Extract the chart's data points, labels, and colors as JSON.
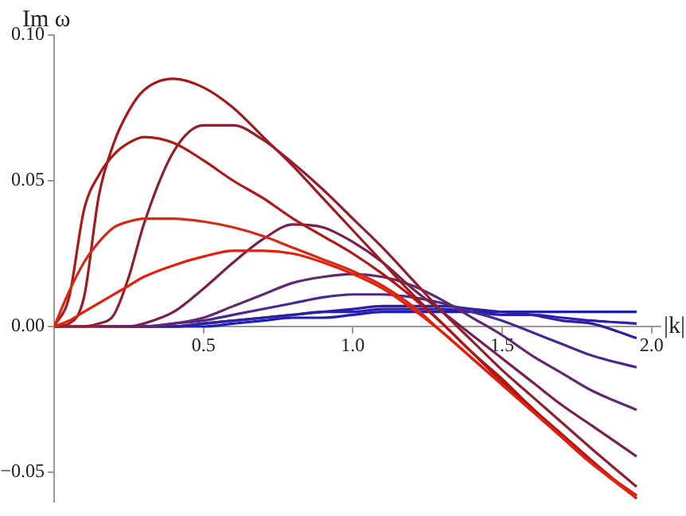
{
  "chart_data": {
    "type": "line",
    "xlabel": "|k|",
    "ylabel": "Im ω",
    "x": [
      0,
      0.05,
      0.1,
      0.15,
      0.2,
      0.25,
      0.3,
      0.4,
      0.5,
      0.6,
      0.7,
      0.8,
      0.9,
      1.0,
      1.1,
      1.2,
      1.3,
      1.4,
      1.5,
      1.6,
      1.7,
      1.8,
      1.95
    ],
    "series": [
      {
        "color": "#e61e0a",
        "values": [
          0,
          0.002,
          0.005,
          0.008,
          0.011,
          0.014,
          0.017,
          0.021,
          0.024,
          0.026,
          0.026,
          0.025,
          0.022,
          0.018,
          0.013,
          0.006,
          -0.002,
          -0.011,
          -0.02,
          -0.029,
          -0.038,
          -0.047,
          -0.058
        ]
      },
      {
        "color": "#d42a14",
        "values": [
          0,
          0.012,
          0.022,
          0.029,
          0.034,
          0.036,
          0.037,
          0.037,
          0.036,
          0.034,
          0.031,
          0.027,
          0.023,
          0.019,
          0.014,
          0.007,
          -0.002,
          -0.011,
          -0.02,
          -0.029,
          -0.038,
          -0.047,
          -0.059
        ]
      },
      {
        "color": "#b01818",
        "values": [
          0,
          0.01,
          0.04,
          0.052,
          0.059,
          0.063,
          0.065,
          0.063,
          0.057,
          0.05,
          0.044,
          0.037,
          0.031,
          0.025,
          0.018,
          0.01,
          0.001,
          -0.009,
          -0.018,
          -0.028,
          -0.037,
          -0.046,
          -0.059
        ]
      },
      {
        "color": "#a01a1e",
        "values": [
          0,
          0.001,
          0.01,
          0.045,
          0.063,
          0.074,
          0.081,
          0.085,
          0.082,
          0.075,
          0.065,
          0.055,
          0.044,
          0.033,
          0.022,
          0.011,
          0.001,
          -0.009,
          -0.019,
          -0.028,
          -0.038,
          -0.047,
          -0.058
        ]
      },
      {
        "color": "#902030",
        "values": [
          0,
          0,
          0,
          0.001,
          0.004,
          0.017,
          0.035,
          0.06,
          0.069,
          0.069,
          0.064,
          0.056,
          0.047,
          0.037,
          0.027,
          0.016,
          0.005,
          -0.005,
          -0.015,
          -0.024,
          -0.033,
          -0.042,
          -0.055
        ]
      },
      {
        "color": "#7a2050",
        "values": [
          0,
          0,
          0,
          0,
          0,
          0,
          0.001,
          0.005,
          0.013,
          0.022,
          0.03,
          0.035,
          0.034,
          0.029,
          0.022,
          0.013,
          0.005,
          -0.003,
          -0.011,
          -0.019,
          -0.027,
          -0.034,
          -0.0446
        ]
      },
      {
        "color": "#602870",
        "values": [
          0,
          0,
          0,
          0,
          0,
          0,
          0,
          0.001,
          0.003,
          0.007,
          0.011,
          0.015,
          0.017,
          0.018,
          0.017,
          0.014,
          0.009,
          0.003,
          -0.003,
          -0.01,
          -0.016,
          -0.022,
          -0.0286
        ]
      },
      {
        "color": "#4a2890",
        "values": [
          null,
          null,
          null,
          0,
          0,
          0,
          0,
          0.001,
          0.002,
          0.004,
          0.006,
          0.008,
          0.01,
          0.011,
          0.011,
          0.01,
          0.008,
          0.005,
          0.002,
          -0.002,
          -0.006,
          -0.01,
          -0.014
        ]
      },
      {
        "color": "#3020a0",
        "values": [
          null,
          null,
          null,
          null,
          0,
          0,
          0,
          0,
          0.001,
          0.002,
          0.003,
          0.004,
          0.005,
          0.006,
          0.007,
          0.007,
          0.007,
          0.006,
          0.005,
          0.004,
          0.002,
          0.001,
          -0.004
        ]
      },
      {
        "color": "#2820b0",
        "values": [
          null,
          null,
          null,
          null,
          null,
          0,
          0,
          0,
          0.001,
          0.002,
          0.003,
          0.004,
          0.005,
          0.005,
          0.006,
          0.006,
          0.006,
          0.005,
          0.004,
          0.004,
          0.003,
          0.002,
          0.001
        ]
      },
      {
        "color": "#1e1eb8",
        "values": [
          null,
          null,
          null,
          null,
          null,
          null,
          0,
          0,
          0,
          0.001,
          0.002,
          0.003,
          0.003,
          0.004,
          0.005,
          0.005,
          0.005,
          0.005,
          0.005,
          0.005,
          0.005,
          0.005,
          0.005
        ]
      }
    ],
    "xlim": [
      0,
      2.03
    ],
    "ylim": [
      -0.06,
      0.1
    ],
    "xticks": [
      {
        "value": 0.5,
        "label": "0.5"
      },
      {
        "value": 1,
        "label": "1.0"
      },
      {
        "value": 1.5,
        "label": "1.5"
      },
      {
        "value": 2,
        "label": "2.0"
      }
    ],
    "yticks": [
      {
        "value": -0.05,
        "label": "−0.05"
      },
      {
        "value": 0,
        "label": "0.00"
      },
      {
        "value": 0.05,
        "label": "0.05"
      },
      {
        "value": 0.1,
        "label": "0.10"
      }
    ],
    "grid": false,
    "legend": false,
    "marker": "none",
    "line_style": "solid"
  }
}
